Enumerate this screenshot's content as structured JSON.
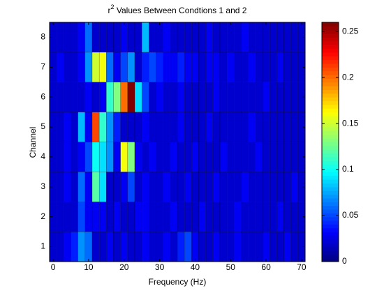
{
  "chart_data": {
    "type": "heatmap",
    "title_parts": [
      "r",
      "2",
      " Values Between Condtions 1 and 2"
    ],
    "x_label": "Frequency (Hz)",
    "y_label": "Channel",
    "colormap": "jet",
    "x": [
      0,
      2,
      4,
      6,
      8,
      10,
      12,
      14,
      16,
      18,
      20,
      22,
      24,
      26,
      28,
      30,
      32,
      34,
      36,
      38,
      40,
      42,
      44,
      46,
      48,
      50,
      52,
      54,
      56,
      58,
      60,
      62,
      64,
      66,
      68,
      70
    ],
    "y": [
      1,
      2,
      3,
      4,
      5,
      6,
      7,
      8
    ],
    "z": [
      [
        0.02,
        0.02,
        0.03,
        0.04,
        0.07,
        0.06,
        0.02,
        0.02,
        0.03,
        0.02,
        0.03,
        0.02,
        0.02,
        0.03,
        0.02,
        0.02,
        0.03,
        0.02,
        0.04,
        0.05,
        0.03,
        0.02,
        0.02,
        0.03,
        0.02,
        0.02,
        0.03,
        0.02,
        0.02,
        0.02,
        0.03,
        0.02,
        0.02,
        0.03,
        0.02,
        0.02
      ],
      [
        0.02,
        0.02,
        0.02,
        0.02,
        0.05,
        0.03,
        0.03,
        0.03,
        0.02,
        0.03,
        0.02,
        0.02,
        0.03,
        0.03,
        0.02,
        0.02,
        0.02,
        0.03,
        0.02,
        0.02,
        0.02,
        0.03,
        0.02,
        0.02,
        0.02,
        0.02,
        0.03,
        0.02,
        0.02,
        0.02,
        0.02,
        0.02,
        0.03,
        0.02,
        0.02,
        0.02
      ],
      [
        0.02,
        0.02,
        0.03,
        0.02,
        0.06,
        0.03,
        0.12,
        0.09,
        0.02,
        0.02,
        0.03,
        0.05,
        0.02,
        0.03,
        0.02,
        0.02,
        0.03,
        0.02,
        0.02,
        0.03,
        0.02,
        0.02,
        0.02,
        0.03,
        0.02,
        0.02,
        0.02,
        0.03,
        0.02,
        0.02,
        0.02,
        0.02,
        0.02,
        0.02,
        0.03,
        0.02
      ],
      [
        0.02,
        0.02,
        0.03,
        0.02,
        0.03,
        0.05,
        0.1,
        0.09,
        0.07,
        0.03,
        0.16,
        0.13,
        0.03,
        0.02,
        0.03,
        0.02,
        0.02,
        0.03,
        0.02,
        0.02,
        0.03,
        0.02,
        0.02,
        0.02,
        0.03,
        0.02,
        0.02,
        0.02,
        0.02,
        0.03,
        0.02,
        0.02,
        0.02,
        0.02,
        0.02,
        0.02
      ],
      [
        0.02,
        0.02,
        0.03,
        0.02,
        0.08,
        0.03,
        0.21,
        0.11,
        0.07,
        0.04,
        0.02,
        0.02,
        0.02,
        0.03,
        0.02,
        0.02,
        0.02,
        0.02,
        0.03,
        0.02,
        0.02,
        0.02,
        0.03,
        0.02,
        0.02,
        0.02,
        0.02,
        0.02,
        0.03,
        0.02,
        0.02,
        0.02,
        0.02,
        0.02,
        0.02,
        0.02
      ],
      [
        0.02,
        0.02,
        0.02,
        0.02,
        0.02,
        0.03,
        0.02,
        0.03,
        0.11,
        0.13,
        0.2,
        0.26,
        0.09,
        0.05,
        0.02,
        0.03,
        0.02,
        0.02,
        0.03,
        0.02,
        0.02,
        0.02,
        0.02,
        0.03,
        0.02,
        0.02,
        0.02,
        0.02,
        0.02,
        0.02,
        0.03,
        0.02,
        0.02,
        0.02,
        0.02,
        0.02
      ],
      [
        0.02,
        0.03,
        0.02,
        0.02,
        0.03,
        0.07,
        0.15,
        0.16,
        0.06,
        0.03,
        0.05,
        0.07,
        0.02,
        0.04,
        0.05,
        0.04,
        0.03,
        0.03,
        0.04,
        0.03,
        0.03,
        0.02,
        0.03,
        0.03,
        0.02,
        0.03,
        0.02,
        0.02,
        0.03,
        0.02,
        0.02,
        0.02,
        0.03,
        0.02,
        0.02,
        0.02
      ],
      [
        0.02,
        0.02,
        0.02,
        0.02,
        0.03,
        0.06,
        0.02,
        0.02,
        0.02,
        0.02,
        0.03,
        0.02,
        0.02,
        0.08,
        0.02,
        0.02,
        0.03,
        0.02,
        0.02,
        0.02,
        0.02,
        0.02,
        0.03,
        0.02,
        0.02,
        0.02,
        0.02,
        0.03,
        0.02,
        0.02,
        0.02,
        0.02,
        0.02,
        0.02,
        0.02,
        0.02
      ]
    ],
    "xlim": [
      -1,
      71
    ],
    "xticks": [
      0,
      10,
      20,
      30,
      40,
      50,
      60,
      70
    ],
    "ylim": [
      0.5,
      8.5
    ],
    "yticks": [
      1,
      2,
      3,
      4,
      5,
      6,
      7,
      8
    ],
    "clim": [
      0,
      0.26
    ],
    "cticks": [
      0,
      0.05,
      0.1,
      0.15,
      0.2,
      0.25
    ]
  }
}
